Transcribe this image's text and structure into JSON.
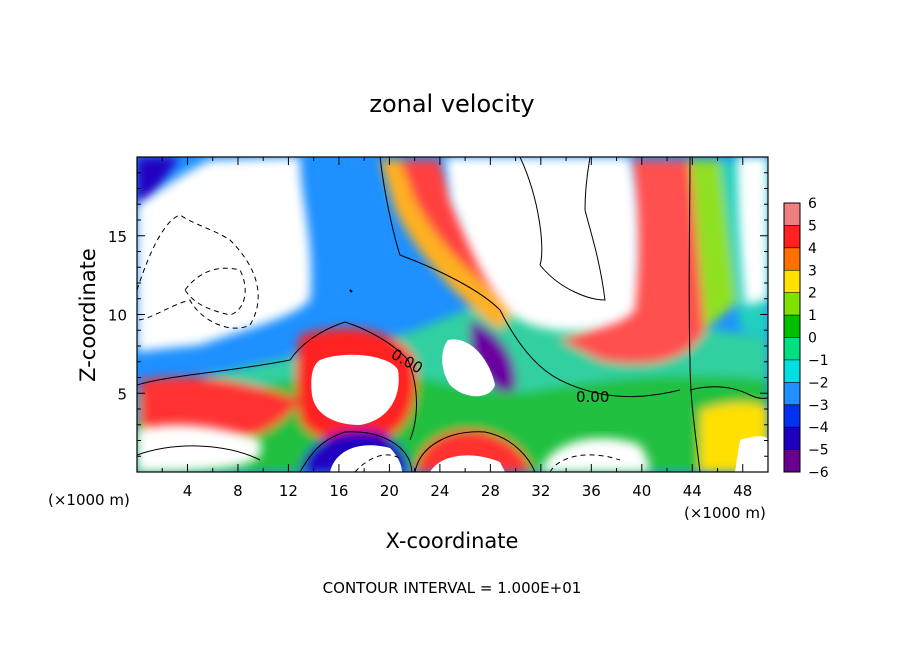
{
  "chart_data": {
    "type": "heatmap",
    "title": "zonal velocity",
    "xlabel": "X-coordinate",
    "ylabel": "Z-coordinate",
    "x_multiplier": "(×1000 m)",
    "y_multiplier": "(×1000 m)",
    "x_ticks": [
      "4",
      "8",
      "12",
      "16",
      "20",
      "24",
      "28",
      "32",
      "36",
      "40",
      "44",
      "48"
    ],
    "y_ticks": [
      "5",
      "10",
      "15"
    ],
    "xlim": [
      0,
      50
    ],
    "ylim": [
      0,
      20
    ],
    "footer": "CONTOUR INTERVAL = 1.000E+01",
    "contour_labels": [
      "0.00",
      "0.00"
    ],
    "colorbar": {
      "labels": [
        "6",
        "5",
        "4",
        "3",
        "2",
        "1",
        "0",
        "−1",
        "−2",
        "−3",
        "−4",
        "−5",
        "−6"
      ],
      "colors": [
        "#f08080",
        "#ff2020",
        "#ff7000",
        "#ffe000",
        "#80e000",
        "#00c000",
        "#00e080",
        "#00e0e0",
        "#2090ff",
        "#0030f0",
        "#2000c0",
        "#6a0090"
      ]
    }
  }
}
